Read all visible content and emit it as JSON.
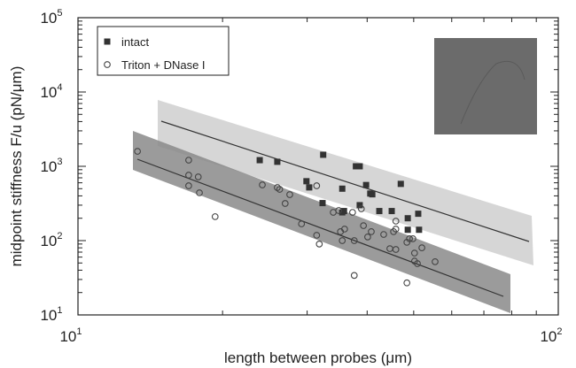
{
  "chart_data": {
    "type": "scatter",
    "xlabel": "length between probes (μm)",
    "ylabel": "midpoint stiffness F/u (pN/μm)",
    "xscale": "log",
    "yscale": "log",
    "xlim": [
      10,
      100
    ],
    "ylim": [
      10,
      100000
    ],
    "xticks": [
      {
        "value": 10,
        "label": "10",
        "exponent": "1"
      },
      {
        "value": 100,
        "label": "10",
        "exponent": "2"
      }
    ],
    "yticks": [
      {
        "value": 10,
        "label": "10",
        "exponent": "1"
      },
      {
        "value": 100,
        "label": "10",
        "exponent": "2"
      },
      {
        "value": 1000,
        "label": "10",
        "exponent": "3"
      },
      {
        "value": 10000,
        "label": "10",
        "exponent": "4"
      },
      {
        "value": 100000,
        "label": "10",
        "exponent": "5"
      }
    ],
    "legend": "upper left",
    "series": [
      {
        "name": "intact",
        "marker": "square",
        "color": "#333333",
        "x": [
          23.9,
          26,
          32.4,
          29.9,
          30.3,
          35.5,
          32.3,
          35.5,
          37.9,
          38.6,
          39.8,
          40.6,
          41,
          38.6,
          42.4,
          35.8,
          47,
          45,
          48.6,
          51.1,
          48.6,
          51.3
        ],
        "values": [
          1210,
          1150,
          1430,
          630,
          520,
          500,
          320,
          240,
          1000,
          1000,
          560,
          430,
          420,
          300,
          250,
          250,
          580,
          250,
          200,
          230,
          140,
          140
        ]
      },
      {
        "name": "Triton + DNase I",
        "marker": "circle",
        "color": "#444444",
        "x": [
          13.3,
          17,
          17,
          17.8,
          17.9,
          17,
          19.3,
          24.2,
          26,
          26.3,
          27.6,
          27,
          29.2,
          31.4,
          31.8,
          31.4,
          34,
          34.9,
          35.2,
          35.5,
          35.9,
          37.3,
          37.6,
          38.9,
          39.3,
          40.1,
          40.8,
          43.3,
          44.6,
          45.4,
          45.9,
          45.9,
          48.4,
          49,
          49.8,
          50.2,
          50.9,
          52,
          55.4,
          37.6,
          48.4,
          50.2,
          45.9
        ],
        "values": [
          1590,
          1210,
          760,
          720,
          440,
          547,
          210,
          562,
          518,
          490,
          416,
          316,
          168,
          118,
          90,
          547,
          240,
          254,
          132,
          100,
          143,
          240,
          100,
          268,
          159,
          112,
          132,
          121,
          78,
          132,
          143,
          183,
          95,
          106,
          106,
          53,
          49,
          80,
          52,
          34,
          27,
          68,
          76
        ]
      }
    ]
  }
}
